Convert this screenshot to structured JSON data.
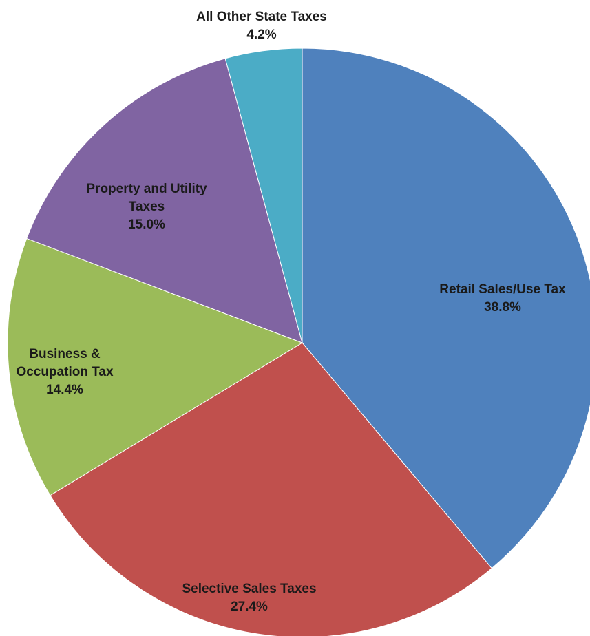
{
  "chart_data": {
    "type": "pie",
    "start_angle_deg": 0,
    "direction": "clockwise",
    "slices": [
      {
        "label": "Retail Sales/Use Tax",
        "label_lines": [
          "Retail Sales/Use Tax"
        ],
        "value": 38.8,
        "display": "38.8%",
        "color": "#4F81BD"
      },
      {
        "label": "Selective Sales Taxes",
        "label_lines": [
          "Selective Sales Taxes"
        ],
        "value": 27.4,
        "display": "27.4%",
        "color": "#C0504D"
      },
      {
        "label": "Business & Occupation Tax",
        "label_lines": [
          "Business &",
          "Occupation Tax"
        ],
        "value": 14.4,
        "display": "14.4%",
        "color": "#9BBB59"
      },
      {
        "label": "Property and Utility Taxes",
        "label_lines": [
          "Property and Utility",
          "Taxes"
        ],
        "value": 15.0,
        "display": "15.0%",
        "color": "#8064A2"
      },
      {
        "label": "All Other State Taxes",
        "label_lines": [
          "All Other State Taxes"
        ],
        "value": 4.2,
        "display": "4.2%",
        "color": "#4BACC6"
      }
    ]
  }
}
